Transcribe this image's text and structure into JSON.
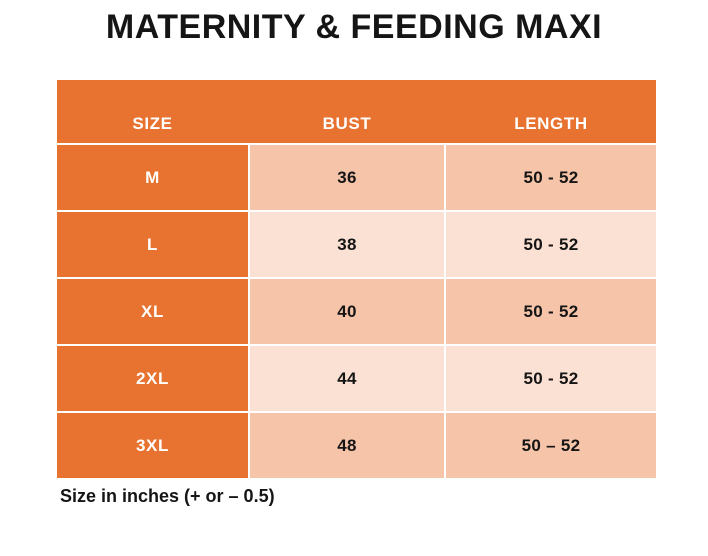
{
  "title": "MATERNITY & FEEDING MAXI",
  "footnote": "Size in inches (+ or – 0.5)",
  "colors": {
    "orange": "#E8722F",
    "peach_dark": "#F6C4A9",
    "peach_light": "#FBE1D3",
    "text_dark": "#151515",
    "text_white": "#FFFFFF",
    "page_bg": "#FFFFFF"
  },
  "chart_data": {
    "type": "table",
    "title": "MATERNITY & FEEDING MAXI",
    "columns": [
      "SIZE",
      "BUST",
      "LENGTH"
    ],
    "rows": [
      [
        "M",
        "36",
        "50 - 52"
      ],
      [
        "L",
        "38",
        "50 - 52"
      ],
      [
        "XL",
        "40",
        "50 - 52"
      ],
      [
        "2XL",
        "44",
        "50 - 52"
      ],
      [
        "3XL",
        "48",
        "50 – 52"
      ]
    ],
    "footnote": "Size in inches (+ or – 0.5)",
    "units": "inches",
    "layout": {
      "header_bg": "#E8722F",
      "size_column_bg": "#E8722F",
      "row_alt_colors": [
        "#F6C4A9",
        "#FBE1D3"
      ],
      "gridlines": "white"
    }
  }
}
